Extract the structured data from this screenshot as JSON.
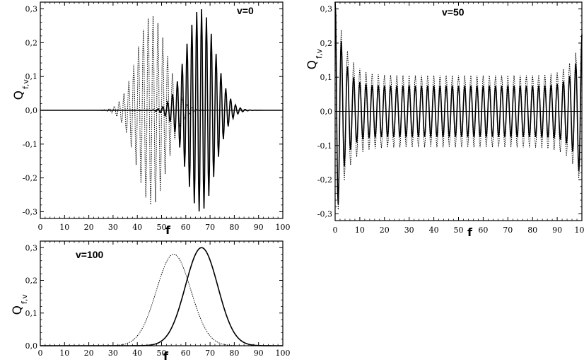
{
  "chart_data": [
    {
      "type": "line",
      "panel_label": "v=0",
      "xlabel": "f",
      "ylabel": "Q",
      "ylabel_sub": "f,v",
      "xlim": [
        0,
        100
      ],
      "ylim": [
        -0.32,
        0.32
      ],
      "x_ticks": [
        "0",
        "10",
        "20",
        "30",
        "40",
        "50",
        "60",
        "70",
        "80",
        "90",
        "100"
      ],
      "y_ticks": [
        "-0,3",
        "-0,2",
        "-0,1",
        "0,0",
        "0,1",
        "0,2",
        "0,3"
      ],
      "series": [
        {
          "style": "dotted",
          "kind": "oscillation",
          "mu": 46,
          "sigma": 6.2,
          "amp": 0.28,
          "period": 2
        },
        {
          "style": "solid",
          "kind": "oscillation",
          "mu": 66,
          "sigma": 6.0,
          "amp": 0.3,
          "period": 2
        }
      ]
    },
    {
      "type": "line",
      "panel_label": "v=50",
      "xlabel": "f",
      "ylabel": "Q",
      "ylabel_sub": "f,v",
      "xlim": [
        0,
        100
      ],
      "ylim": [
        -0.32,
        0.32
      ],
      "x_ticks": [
        "0",
        "10",
        "20",
        "30",
        "40",
        "50",
        "60",
        "70",
        "80",
        "90",
        "100"
      ],
      "y_ticks": [
        "-0,3",
        "-0,2",
        "-0,1",
        "0,0",
        "0,1",
        "0,2",
        "0,3"
      ],
      "series": [
        {
          "style": "solid",
          "kind": "flat-oscillation",
          "base": 0.075,
          "edge_amp": 0.3,
          "edge_decay": 3,
          "period": 2.5
        },
        {
          "style": "dotted",
          "kind": "flat-oscillation",
          "base": 0.105,
          "edge_amp": 0.25,
          "edge_decay": 4,
          "period": 2.5
        }
      ]
    },
    {
      "type": "line",
      "panel_label": "v=100",
      "xlabel": "f",
      "ylabel": "Q",
      "ylabel_sub": "f,v",
      "xlim": [
        0,
        100
      ],
      "ylim": [
        0,
        0.32
      ],
      "x_ticks": [
        "0",
        "10",
        "20",
        "30",
        "40",
        "50",
        "60",
        "70",
        "80",
        "90",
        "100"
      ],
      "y_ticks": [
        "0,0",
        "0,1",
        "0,2",
        "0,3"
      ],
      "series": [
        {
          "style": "dotted",
          "kind": "gaussian",
          "mu": 55,
          "sigma": 7.1,
          "amp": 0.28
        },
        {
          "style": "solid",
          "kind": "gaussian",
          "mu": 66.5,
          "sigma": 6.7,
          "amp": 0.3
        }
      ]
    }
  ]
}
